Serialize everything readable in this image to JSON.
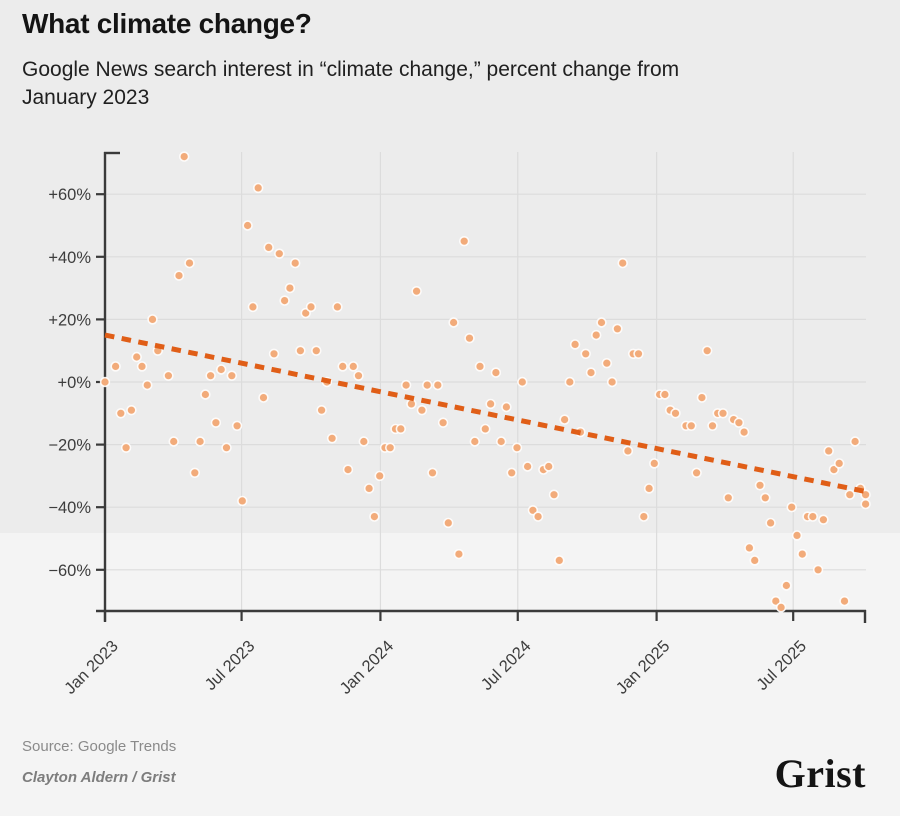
{
  "header": {
    "title": "What climate change?",
    "subtitle": "Google News search interest in “climate change,” percent change from\nJanuary 2023"
  },
  "footer": {
    "source": "Source: Google Trends",
    "byline": "Clayton Aldern / Grist",
    "logo": "Grist"
  },
  "colors": {
    "point_fill": "#f2ab7a",
    "point_halo": "#ffffff",
    "trend": "#e05e17",
    "axis": "#3a3a3a",
    "grid": "#dcdcdc",
    "tick_text": "#3d3d3d",
    "background_top": "#ececec",
    "background_bottom": "#f4f4f4"
  },
  "chart_data": {
    "type": "scatter",
    "title": "What climate change?",
    "subtitle": "Google News search interest in “climate change,” percent change from January 2023",
    "x_axis": {
      "unit": "weeks since 2023-01-01",
      "start_date": "2023-01-01",
      "interval_days": 7,
      "tick_labels": [
        "Jan 2023",
        "Jul 2023",
        "Jan 2024",
        "Jul 2024",
        "Jan 2025",
        "Jul 2025"
      ],
      "tick_day_offsets": [
        0,
        181,
        365,
        547,
        731,
        912
      ],
      "range_days": [
        0,
        1008
      ]
    },
    "y_axis": {
      "label": "percent change from January 2023",
      "tick_labels": [
        "+60%",
        "+40%",
        "+20%",
        "+0%",
        "−20%",
        "−40%",
        "−60%"
      ],
      "tick_values": [
        60,
        40,
        20,
        0,
        -20,
        -40,
        -60
      ],
      "range": [
        -73,
        74
      ],
      "grid": true
    },
    "legend": "none",
    "points_week_percent": [
      [
        0,
        0
      ],
      [
        2,
        5
      ],
      [
        3,
        -10
      ],
      [
        4,
        -21
      ],
      [
        5,
        -9
      ],
      [
        6,
        8
      ],
      [
        7,
        5
      ],
      [
        8,
        -1
      ],
      [
        9,
        20
      ],
      [
        10,
        10
      ],
      [
        12,
        2
      ],
      [
        13,
        -19
      ],
      [
        14,
        34
      ],
      [
        15,
        72
      ],
      [
        16,
        38
      ],
      [
        17,
        -29
      ],
      [
        18,
        -19
      ],
      [
        19,
        -4
      ],
      [
        20,
        2
      ],
      [
        21,
        -13
      ],
      [
        22,
        4
      ],
      [
        23,
        -21
      ],
      [
        24,
        2
      ],
      [
        25,
        -14
      ],
      [
        26,
        -38
      ],
      [
        27,
        50
      ],
      [
        28,
        24
      ],
      [
        29,
        62
      ],
      [
        30,
        -5
      ],
      [
        31,
        43
      ],
      [
        32,
        9
      ],
      [
        33,
        41
      ],
      [
        34,
        26
      ],
      [
        35,
        30
      ],
      [
        36,
        38
      ],
      [
        37,
        10
      ],
      [
        38,
        22
      ],
      [
        39,
        24
      ],
      [
        40,
        10
      ],
      [
        41,
        -9
      ],
      [
        42,
        0
      ],
      [
        43,
        -18
      ],
      [
        44,
        24
      ],
      [
        45,
        5
      ],
      [
        46,
        -28
      ],
      [
        47,
        5
      ],
      [
        48,
        2
      ],
      [
        49,
        -19
      ],
      [
        50,
        -34
      ],
      [
        51,
        -43
      ],
      [
        52,
        -30
      ],
      [
        53,
        -21
      ],
      [
        54,
        -21
      ],
      [
        55,
        -15
      ],
      [
        56,
        -15
      ],
      [
        57,
        -1
      ],
      [
        58,
        -7
      ],
      [
        59,
        29
      ],
      [
        60,
        -9
      ],
      [
        61,
        -1
      ],
      [
        62,
        -29
      ],
      [
        63,
        -1
      ],
      [
        64,
        -13
      ],
      [
        65,
        -45
      ],
      [
        66,
        19
      ],
      [
        67,
        -55
      ],
      [
        68,
        45
      ],
      [
        69,
        14
      ],
      [
        70,
        -19
      ],
      [
        71,
        5
      ],
      [
        72,
        -15
      ],
      [
        73,
        -7
      ],
      [
        74,
        3
      ],
      [
        75,
        -19
      ],
      [
        76,
        -8
      ],
      [
        77,
        -29
      ],
      [
        78,
        -21
      ],
      [
        79,
        0
      ],
      [
        80,
        -27
      ],
      [
        81,
        -41
      ],
      [
        82,
        -43
      ],
      [
        83,
        -28
      ],
      [
        84,
        -27
      ],
      [
        85,
        -36
      ],
      [
        86,
        -57
      ],
      [
        87,
        -12
      ],
      [
        88,
        0
      ],
      [
        89,
        12
      ],
      [
        90,
        -16
      ],
      [
        91,
        9
      ],
      [
        92,
        3
      ],
      [
        93,
        15
      ],
      [
        94,
        19
      ],
      [
        95,
        6
      ],
      [
        96,
        0
      ],
      [
        97,
        17
      ],
      [
        98,
        38
      ],
      [
        99,
        -22
      ],
      [
        100,
        9
      ],
      [
        101,
        9
      ],
      [
        102,
        -43
      ],
      [
        103,
        -34
      ],
      [
        104,
        -26
      ],
      [
        105,
        -4
      ],
      [
        106,
        -4
      ],
      [
        107,
        -9
      ],
      [
        108,
        -10
      ],
      [
        110,
        -14
      ],
      [
        111,
        -14
      ],
      [
        112,
        -29
      ],
      [
        113,
        -5
      ],
      [
        114,
        10
      ],
      [
        115,
        -14
      ],
      [
        116,
        -10
      ],
      [
        117,
        -10
      ],
      [
        118,
        -37
      ],
      [
        119,
        -12
      ],
      [
        120,
        -13
      ],
      [
        121,
        -16
      ],
      [
        122,
        -53
      ],
      [
        123,
        -57
      ],
      [
        124,
        -33
      ],
      [
        125,
        -37
      ],
      [
        126,
        -45
      ],
      [
        127,
        -70
      ],
      [
        128,
        -72
      ],
      [
        129,
        -65
      ],
      [
        130,
        -40
      ],
      [
        131,
        -49
      ],
      [
        132,
        -55
      ],
      [
        133,
        -43
      ],
      [
        134,
        -43
      ],
      [
        135,
        -60
      ],
      [
        136,
        -44
      ],
      [
        137,
        -22
      ],
      [
        138,
        -28
      ],
      [
        139,
        -26
      ],
      [
        140,
        -70
      ],
      [
        141,
        -36
      ],
      [
        142,
        -19
      ],
      [
        143,
        -34
      ],
      [
        144,
        -39
      ],
      [
        144,
        -36
      ]
    ],
    "trend": {
      "style": "dashed",
      "start_week_percent": [
        0,
        15
      ],
      "end_week_percent": [
        144,
        -35
      ]
    }
  }
}
